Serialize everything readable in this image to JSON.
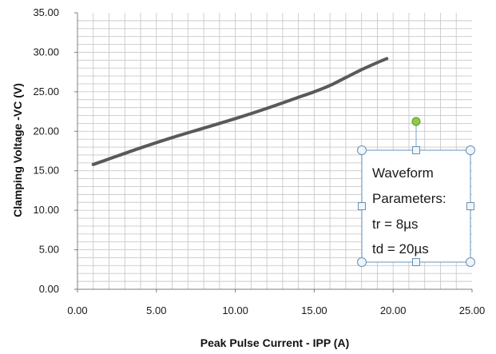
{
  "chart_data": {
    "type": "line",
    "xlabel": "Peak Pulse Current - IPP (A)",
    "ylabel": "Clamping Voltage -VC (V)",
    "xlim": [
      0,
      25
    ],
    "ylim": [
      0,
      35
    ],
    "x_ticks": [
      "0.00",
      "5.00",
      "10.00",
      "15.00",
      "20.00",
      "25.00"
    ],
    "y_ticks": [
      "0.00",
      "5.00",
      "10.00",
      "15.00",
      "20.00",
      "25.00",
      "30.00",
      "35.00"
    ],
    "grid": true,
    "series": [
      {
        "color": "#595959",
        "x": [
          1,
          2,
          4,
          6,
          8,
          10,
          12,
          14,
          15,
          16,
          17,
          18,
          19,
          19.6
        ],
        "y": [
          15.8,
          16.5,
          17.9,
          19.2,
          20.4,
          21.6,
          22.9,
          24.3,
          25.0,
          25.8,
          26.8,
          27.8,
          28.7,
          29.2
        ]
      }
    ],
    "annotation": {
      "lines": [
        "Waveform",
        "Parameters:",
        "tr = 8µs",
        "td = 20µs"
      ]
    }
  }
}
